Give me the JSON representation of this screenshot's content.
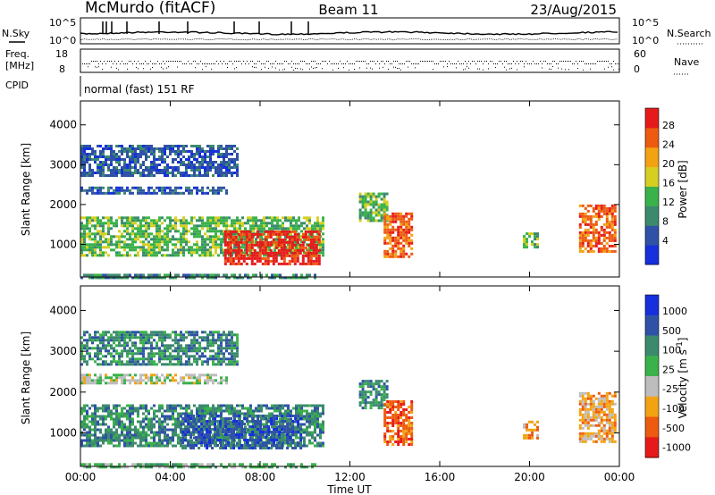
{
  "header": {
    "station": "McMurdo (fitACF)",
    "beam": "Beam 11",
    "date": "23/Aug/2015"
  },
  "top_panels": {
    "nsky_label": "N.Sky",
    "nsearch_label": "N.Search",
    "noise_left_ticks": [
      "10^5",
      "10^0"
    ],
    "noise_right_ticks": [
      "10^5",
      "10^0"
    ],
    "freq_label_1": "Freq.",
    "freq_label_2": "[MHz]",
    "freq_ticks": [
      "18",
      "8"
    ],
    "nave_label": "Nave",
    "nave_ticks": [
      "60",
      "0"
    ],
    "cpid_label": "CPID",
    "cpid_text": "normal (fast) 151 RF"
  },
  "chart_data": [
    {
      "type": "heatmap",
      "name": "power",
      "xlabel": "Time UT",
      "ylabel": "Slant Range [km]",
      "xlim_hours": [
        0,
        24
      ],
      "ylim": [
        180,
        4600
      ],
      "x_ticks": [
        "00:00",
        "04:00",
        "08:00",
        "12:00",
        "16:00",
        "20:00",
        "00:00"
      ],
      "x_tick_hours": [
        0,
        4,
        8,
        12,
        16,
        20,
        24
      ],
      "y_ticks": [
        1000,
        2000,
        3000,
        4000
      ],
      "colorbar": {
        "label": "Power [dB]",
        "ticks": [
          "28",
          "24",
          "20",
          "16",
          "12",
          "8",
          "4"
        ],
        "levels": [
          0,
          4,
          8,
          12,
          16,
          20,
          24,
          28,
          30
        ],
        "colors": [
          "#1530dc",
          "#2f52a6",
          "#3c8a6e",
          "#3ab24a",
          "#d6cf22",
          "#f3a312",
          "#ee5a10",
          "#e61a1a"
        ]
      },
      "regions": [
        {
          "t": [
            0.0,
            10.8
          ],
          "r": [
            700,
            1700
          ],
          "level": 3
        },
        {
          "t": [
            6.4,
            10.6
          ],
          "r": [
            500,
            1350
          ],
          "level": 7
        },
        {
          "t": [
            0.0,
            10.5
          ],
          "r": [
            180,
            260
          ],
          "level": 2
        },
        {
          "t": [
            0.0,
            6.5
          ],
          "r": [
            2250,
            2450
          ],
          "level": 1
        },
        {
          "t": [
            0.0,
            7.0
          ],
          "r": [
            2700,
            3500
          ],
          "level": 1
        },
        {
          "t": [
            12.4,
            13.6
          ],
          "r": [
            1600,
            2300
          ],
          "level": 3
        },
        {
          "t": [
            13.5,
            14.8
          ],
          "r": [
            700,
            1800
          ],
          "level": 6
        },
        {
          "t": [
            19.7,
            20.4
          ],
          "r": [
            900,
            1300
          ],
          "level": 3
        },
        {
          "t": [
            22.2,
            23.8
          ],
          "r": [
            800,
            2000
          ],
          "level": 6
        }
      ]
    },
    {
      "type": "heatmap",
      "name": "velocity",
      "xlabel": "Time UT",
      "ylabel": "Slant Range [km]",
      "xlim_hours": [
        0,
        24
      ],
      "ylim": [
        180,
        4600
      ],
      "x_ticks": [
        "00:00",
        "04:00",
        "08:00",
        "12:00",
        "16:00",
        "20:00",
        "00:00"
      ],
      "x_tick_hours": [
        0,
        4,
        8,
        12,
        16,
        20,
        24
      ],
      "y_ticks": [
        1000,
        2000,
        3000,
        4000
      ],
      "colorbar": {
        "label": "Velocity [m s",
        "label_superscript": "-1",
        "label_close": "]",
        "ticks": [
          "1000",
          "500",
          "100",
          "25",
          "-25",
          "-100",
          "-500",
          "-1000"
        ],
        "colors": [
          "#1530dc",
          "#2f52a6",
          "#3c8a6e",
          "#3ab24a",
          "#bdbdbd",
          "#f3a312",
          "#ee5a10",
          "#e61a1a"
        ]
      },
      "regions": [
        {
          "t": [
            0.0,
            10.8
          ],
          "r": [
            700,
            1700
          ],
          "bin": 2
        },
        {
          "t": [
            4.5,
            9.8
          ],
          "r": [
            600,
            1450
          ],
          "bin": 1
        },
        {
          "t": [
            0.0,
            10.5
          ],
          "r": [
            180,
            260
          ],
          "bin": 3
        },
        {
          "t": [
            0.0,
            6.5
          ],
          "r": [
            2250,
            2450
          ],
          "bin": 4
        },
        {
          "t": [
            0.0,
            7.0
          ],
          "r": [
            2700,
            3500
          ],
          "bin": 2
        },
        {
          "t": [
            12.4,
            13.6
          ],
          "r": [
            1600,
            2300
          ],
          "bin": 2
        },
        {
          "t": [
            13.5,
            14.8
          ],
          "r": [
            700,
            1800
          ],
          "bin": 6
        },
        {
          "t": [
            19.7,
            20.4
          ],
          "r": [
            900,
            1300
          ],
          "bin": 5
        },
        {
          "t": [
            22.2,
            23.8
          ],
          "r": [
            800,
            2000
          ],
          "bin": 5
        }
      ]
    }
  ]
}
